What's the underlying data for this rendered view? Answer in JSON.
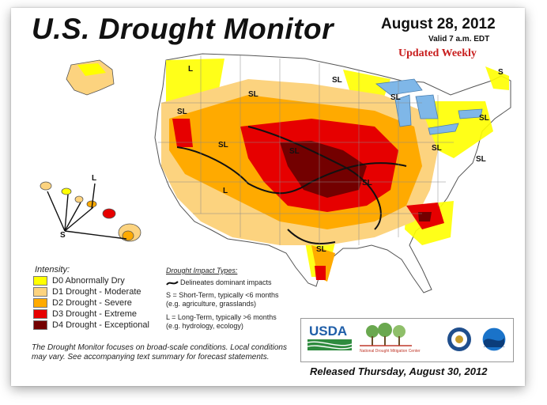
{
  "header": {
    "title": "U.S. Drought Monitor",
    "date": "August 28, 2012",
    "valid": "Valid 7 a.m. EDT",
    "updated": "Updated Weekly"
  },
  "legend": {
    "title": "Intensity:",
    "items": [
      {
        "label": "D0 Abnormally Dry",
        "color": "#ffff00"
      },
      {
        "label": "D1 Drought - Moderate",
        "color": "#fcd37f"
      },
      {
        "label": "D2 Drought - Severe",
        "color": "#ffaa00"
      },
      {
        "label": "D3 Drought - Extreme",
        "color": "#e60000"
      },
      {
        "label": "D4 Drought - Exceptional",
        "color": "#730000"
      }
    ]
  },
  "impact": {
    "title": "Drought Impact Types:",
    "line": "Delineates dominant impacts",
    "short": "S = Short-Term, typically <6 months",
    "short_eg": "(e.g. agriculture, grasslands)",
    "long": "L = Long-Term, typically >6 months",
    "long_eg": "(e.g. hydrology, ecology)"
  },
  "footnote": "The Drought Monitor focuses on broad-scale conditions. Local conditions may vary. See accompanying text summary for forecast statements.",
  "released": "Released Thursday, August 30, 2012",
  "logos": {
    "usda": "USDA",
    "ndmc": "National Drought Mitigation Center"
  },
  "map_labels": {
    "sl": "SL",
    "s": "S",
    "l": "L"
  },
  "colors": {
    "d0": "#ffff00",
    "d1": "#fcd37f",
    "d2": "#ffaa00",
    "d3": "#e60000",
    "d4": "#730000",
    "water": "#7fb7e8",
    "land": "#ffffff"
  }
}
